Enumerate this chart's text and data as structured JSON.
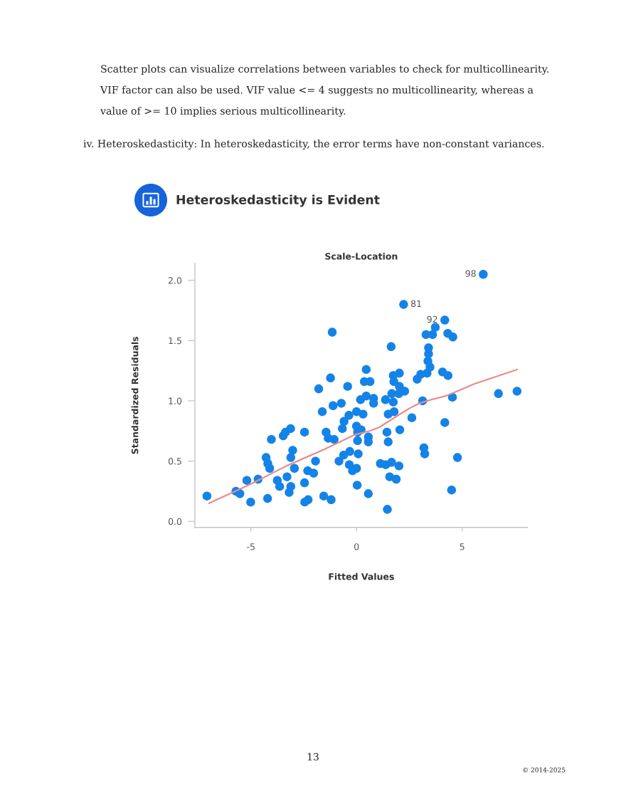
{
  "chart_data": {
    "type": "scatter",
    "title": "Heteroskedasticity is Evident",
    "subtitle": "Scale-Location",
    "xlabel": "Fitted Values",
    "ylabel": "Standardized Residuals",
    "series": [
      {
        "color": "#1483e8",
        "marker": "circle",
        "x": [
          -1.15,
          -1.23,
          -1.79,
          -0.42,
          6.0,
          2.23,
          4.18,
          3.73,
          3.29,
          3.6,
          4.32,
          4.56,
          1.64,
          3.41,
          3.41,
          3.38,
          3.48,
          0.46,
          1.74,
          2.03,
          3.04,
          3.34,
          2.87,
          4.07,
          4.33,
          0.37,
          0.64,
          1.77,
          2.03,
          2.28,
          1.67,
          2.0,
          0.19,
          0.46,
          0.81,
          1.37,
          3.13,
          4.54,
          6.72,
          7.6,
          0.81,
          1.74,
          0.0,
          0.31,
          1.5,
          1.78,
          2.62,
          4.18,
          0.0,
          0.22,
          0.05,
          1.44,
          2.05,
          0.05,
          0.56,
          0.56,
          1.5,
          3.19,
          3.23,
          4.78,
          0.08,
          1.13,
          1.38,
          1.66,
          2.01,
          0.0,
          1.57,
          1.88,
          0.03,
          0.56,
          4.5,
          1.46,
          -7.08,
          -5.71,
          -5.52,
          -5.01,
          -5.19,
          -4.66,
          -4.21,
          -4.03,
          -4.28,
          -4.2,
          -4.11,
          -3.75,
          -3.64,
          -3.47,
          -3.36,
          -3.12,
          -3.29,
          -3.11,
          -3.02,
          -2.94,
          -3.11,
          -3.19,
          -2.46,
          -2.46,
          -2.45,
          -2.29,
          -2.31,
          -2.03,
          -1.94,
          -1.55,
          -1.2,
          -1.62,
          -1.11,
          -0.72,
          -1.44,
          -1.34,
          -1.06,
          -0.83,
          -0.61,
          -0.32,
          -0.34,
          -0.19,
          -0.36,
          -0.59,
          -0.67
        ],
        "values": [
          1.57,
          1.19,
          1.1,
          1.12,
          2.05,
          1.8,
          1.67,
          1.61,
          1.55,
          1.55,
          1.56,
          1.53,
          1.45,
          1.44,
          1.39,
          1.33,
          1.28,
          1.26,
          1.21,
          1.23,
          1.22,
          1.23,
          1.18,
          1.24,
          1.21,
          1.16,
          1.16,
          1.16,
          1.12,
          1.08,
          1.06,
          1.06,
          1.01,
          1.04,
          1.02,
          1.01,
          1.0,
          1.03,
          1.06,
          1.08,
          0.98,
          0.99,
          0.91,
          0.89,
          0.89,
          0.91,
          0.86,
          0.82,
          0.79,
          0.76,
          0.74,
          0.74,
          0.76,
          0.67,
          0.7,
          0.66,
          0.66,
          0.61,
          0.56,
          0.53,
          0.56,
          0.48,
          0.47,
          0.49,
          0.46,
          0.44,
          0.37,
          0.35,
          0.3,
          0.23,
          0.26,
          0.1,
          0.21,
          0.25,
          0.23,
          0.16,
          0.34,
          0.35,
          0.19,
          0.68,
          0.53,
          0.48,
          0.44,
          0.34,
          0.29,
          0.71,
          0.74,
          0.77,
          0.37,
          0.53,
          0.59,
          0.44,
          0.29,
          0.24,
          0.74,
          0.32,
          0.16,
          0.18,
          0.42,
          0.4,
          0.5,
          0.21,
          0.18,
          0.91,
          0.96,
          0.98,
          0.74,
          0.69,
          0.68,
          0.5,
          0.55,
          0.58,
          0.47,
          0.42,
          0.88,
          0.83,
          0.77
        ]
      },
      {
        "type": "line",
        "color": "#ea8a8a",
        "line_style": "solid",
        "x": [
          -6.98,
          -5.0,
          -3.32,
          -1.5,
          -0.06,
          0.17,
          0.62,
          1.07,
          1.52,
          1.97,
          2.53,
          2.98,
          3.55,
          4.22,
          5.57,
          7.6
        ],
        "values": [
          0.15,
          0.31,
          0.46,
          0.6,
          0.72,
          0.73,
          0.75,
          0.78,
          0.83,
          0.88,
          0.94,
          0.98,
          1.01,
          1.04,
          1.14,
          1.26
        ]
      }
    ],
    "xlim": [
      -7.65,
      8.1
    ],
    "ylim": [
      -0.05,
      2.14
    ],
    "xticks": [
      -5,
      0,
      5
    ],
    "yticks": [
      {
        "value": 0,
        "label": "0.0"
      },
      0.5,
      {
        "value": 1,
        "label": "1.0"
      },
      1.5,
      {
        "value": 2,
        "label": "2.0"
      }
    ],
    "grid": false,
    "annotations": [
      "Scatter plots can visualize correlations between variables to check for multicollinearity. VIF factor can also be used. VIF value <= 4 suggests no multicollinearity, whereas a value of >= 10 implies serious multicollinearity.",
      "iv. Heteroskedasticity: In heteroskedasticity, the error terms have non-constant variances.",
      "13",
      "© 2014-2025",
      {
        "text": "98",
        "x": 6.0,
        "y": 2.05
      },
      {
        "text": "81",
        "x": 2.23,
        "y": 1.8
      },
      {
        "text": "92",
        "x": 4.18,
        "y": 1.67
      }
    ]
  }
}
